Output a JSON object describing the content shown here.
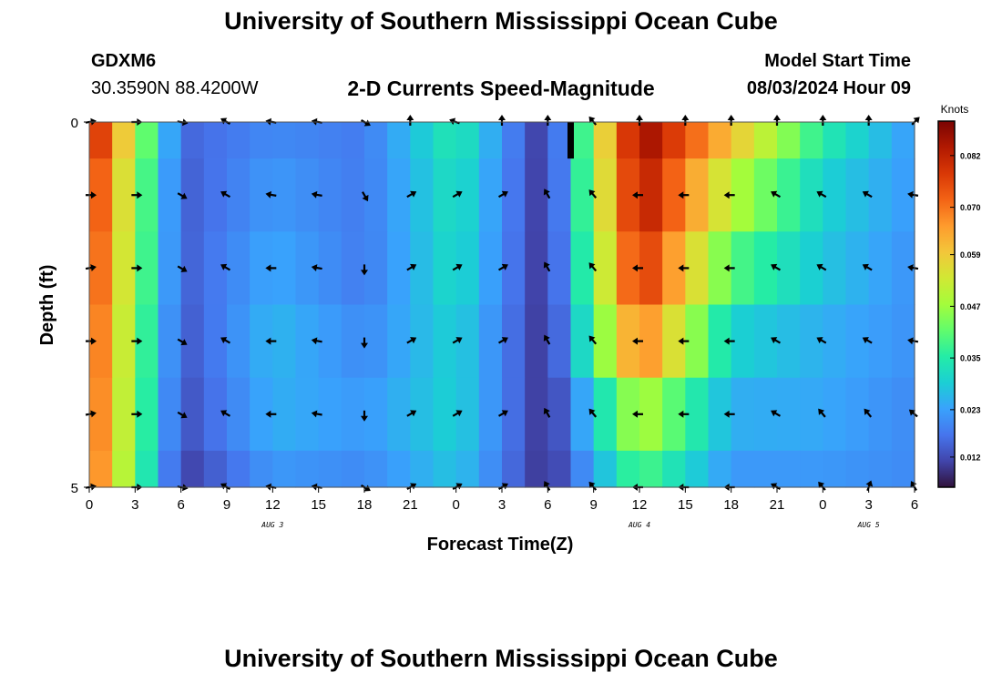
{
  "header": {
    "title": "University of Southern Mississippi Ocean Cube",
    "station_id": "GDXM6",
    "coords": "30.3590N  88.4200W",
    "plot_title": "2-D Currents Speed-Magnitude",
    "model_label": "Model Start Time",
    "model_time": "08/03/2024 Hour 09"
  },
  "footer": {
    "title": "University of Southern Mississippi Ocean Cube"
  },
  "colors": {
    "ramp": [
      "#30123b",
      "#4145ab",
      "#4675ed",
      "#39a2fc",
      "#1bcfd4",
      "#24eca6",
      "#61fc6c",
      "#a4fc3b",
      "#d1e834",
      "#f3c63a",
      "#fe9b2d",
      "#f36315",
      "#d93806",
      "#b11901",
      "#7a0403"
    ]
  },
  "chart_data": {
    "type": "heatmap",
    "xlabel": "Forecast Time(Z)",
    "ylabel": "Depth (ft)",
    "x_tick_labels": [
      "0",
      "3",
      "6",
      "9",
      "12",
      "15",
      "18",
      "21",
      "0",
      "3",
      "6",
      "9",
      "12",
      "15",
      "18",
      "21",
      "0",
      "3",
      "6"
    ],
    "x_hours": [
      0,
      3,
      6,
      9,
      12,
      15,
      18,
      21,
      24,
      27,
      30,
      33,
      36,
      39,
      42,
      45,
      48,
      51,
      54
    ],
    "date_labels": [
      {
        "label": "AUG 3",
        "hour": 12
      },
      {
        "label": "AUG 4",
        "hour": 36
      },
      {
        "label": "AUG 5",
        "hour": 51
      }
    ],
    "x_range": [
      0,
      54
    ],
    "y_tick_labels": [
      "0",
      "5"
    ],
    "y_range": [
      0,
      5
    ],
    "colorbar": {
      "unit": "Knots",
      "min": 0.005,
      "max": 0.09,
      "tick_values": [
        0.012,
        0.023,
        0.035,
        0.047,
        0.059,
        0.07,
        0.082
      ],
      "tick_labels": [
        "0.012",
        "0.023",
        "0.035",
        "0.047",
        "0.059",
        "0.070",
        "0.082"
      ]
    },
    "time_hours": [
      0,
      6,
      12,
      18,
      24,
      30,
      36,
      42,
      48,
      54
    ],
    "speed_profiles": [
      [
        0.085,
        0.015,
        0.02,
        0.018,
        0.035,
        0.008,
        0.088,
        0.06,
        0.035,
        0.022
      ],
      [
        0.08,
        0.014,
        0.022,
        0.018,
        0.033,
        0.008,
        0.085,
        0.05,
        0.03,
        0.022
      ],
      [
        0.078,
        0.014,
        0.024,
        0.018,
        0.032,
        0.008,
        0.08,
        0.04,
        0.028,
        0.021
      ],
      [
        0.076,
        0.013,
        0.026,
        0.02,
        0.03,
        0.008,
        0.07,
        0.03,
        0.025,
        0.021
      ],
      [
        0.075,
        0.012,
        0.025,
        0.022,
        0.03,
        0.008,
        0.05,
        0.025,
        0.024,
        0.02
      ],
      [
        0.074,
        0.01,
        0.022,
        0.02,
        0.028,
        0.008,
        0.04,
        0.022,
        0.022,
        0.02
      ]
    ],
    "depth_rows": [
      "0",
      "1",
      "2",
      "3",
      "4",
      "5"
    ],
    "vector_hours": [
      0,
      3,
      6,
      9,
      12,
      15,
      18,
      21,
      24,
      27,
      30,
      33,
      36,
      39,
      42,
      45,
      48,
      51,
      54
    ],
    "vector_depths": [
      0,
      1,
      2,
      3,
      4,
      5
    ],
    "vector_directions_deg": [
      [
        80,
        90,
        100,
        -60,
        -80,
        -80,
        120,
        0,
        -70,
        0,
        0,
        -40,
        0,
        0,
        0,
        0,
        0,
        0,
        45
      ],
      [
        90,
        90,
        120,
        -60,
        -80,
        -80,
        150,
        60,
        60,
        60,
        -30,
        -40,
        -90,
        -90,
        -90,
        -60,
        -60,
        -60,
        -80
      ],
      [
        80,
        90,
        120,
        -60,
        -90,
        -80,
        180,
        60,
        60,
        60,
        -30,
        -40,
        -90,
        -90,
        -90,
        -60,
        -60,
        -60,
        -80
      ],
      [
        90,
        90,
        120,
        -60,
        -90,
        -80,
        180,
        60,
        60,
        60,
        -30,
        -40,
        -90,
        -90,
        -90,
        -60,
        -60,
        -60,
        -80
      ],
      [
        80,
        90,
        120,
        -60,
        -90,
        -80,
        180,
        60,
        60,
        60,
        -30,
        -40,
        -90,
        -90,
        -90,
        -60,
        -40,
        -40,
        -50
      ],
      [
        80,
        90,
        100,
        -60,
        -80,
        -80,
        120,
        60,
        60,
        60,
        -30,
        -40,
        -90,
        -90,
        -90,
        -60,
        -40,
        20,
        -30
      ]
    ],
    "missing_marker": {
      "hour": 31.5,
      "depth_from": 0,
      "depth_to": 0.5
    }
  }
}
